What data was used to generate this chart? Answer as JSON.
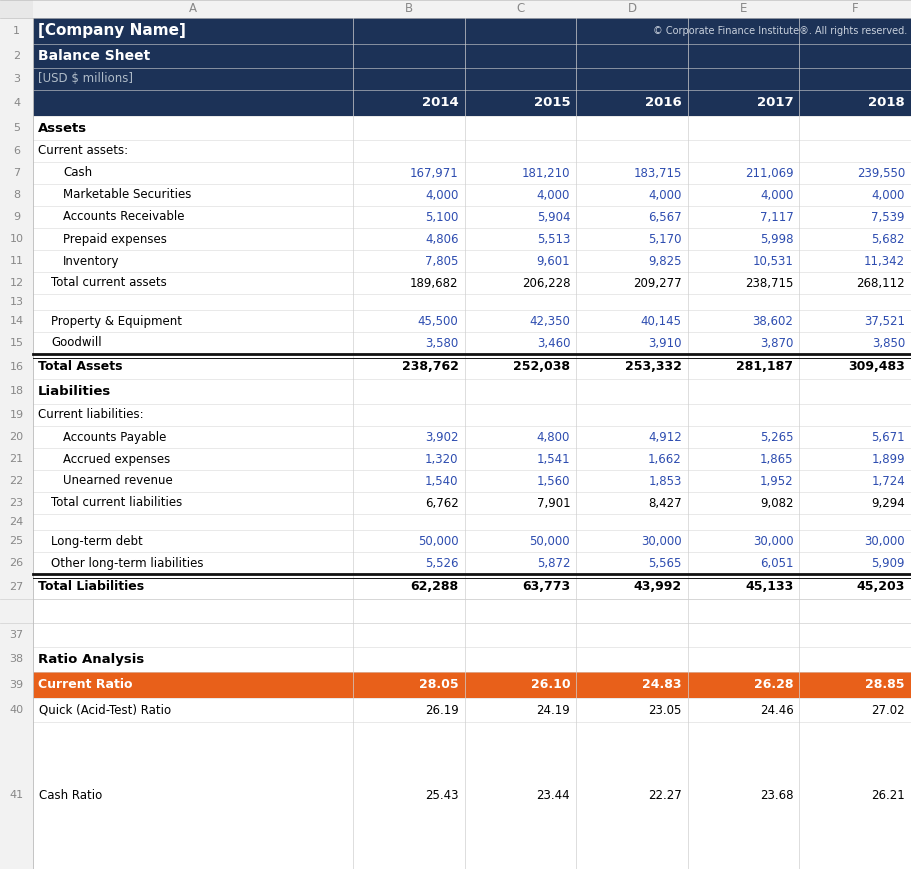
{
  "copyright_text": "© Corporate Finance Institute®. All rights reserved.",
  "header_dark": "#1c3257",
  "orange": "#e8601a",
  "blue_text": "#2e4db0",
  "rows": [
    {
      "row": 1,
      "label": "[Company Name]",
      "values": [],
      "style": "header_title"
    },
    {
      "row": 2,
      "label": "Balance Sheet",
      "values": [],
      "style": "header_sub"
    },
    {
      "row": 3,
      "label": "[USD $ millions]",
      "values": [],
      "style": "header_small"
    },
    {
      "row": 4,
      "label": "",
      "values": [
        "2014",
        "2015",
        "2016",
        "2017",
        "2018"
      ],
      "style": "year_header"
    },
    {
      "row": 5,
      "label": "Assets",
      "values": [],
      "style": "section"
    },
    {
      "row": 6,
      "label": "Current assets:",
      "values": [],
      "style": "subsection"
    },
    {
      "row": 7,
      "label": "Cash",
      "values": [
        "167,971",
        "181,210",
        "183,715",
        "211,069",
        "239,550"
      ],
      "style": "data_blue",
      "indent": 2
    },
    {
      "row": 8,
      "label": "Marketable Securities",
      "values": [
        "4,000",
        "4,000",
        "4,000",
        "4,000",
        "4,000"
      ],
      "style": "data_blue",
      "indent": 2
    },
    {
      "row": 9,
      "label": "Accounts Receivable",
      "values": [
        "5,100",
        "5,904",
        "6,567",
        "7,117",
        "7,539"
      ],
      "style": "data_blue",
      "indent": 2
    },
    {
      "row": 10,
      "label": "Prepaid expenses",
      "values": [
        "4,806",
        "5,513",
        "5,170",
        "5,998",
        "5,682"
      ],
      "style": "data_blue",
      "indent": 2
    },
    {
      "row": 11,
      "label": "Inventory",
      "values": [
        "7,805",
        "9,601",
        "9,825",
        "10,531",
        "11,342"
      ],
      "style": "data_blue",
      "indent": 2
    },
    {
      "row": 12,
      "label": "Total current assets",
      "values": [
        "189,682",
        "206,228",
        "209,277",
        "238,715",
        "268,112"
      ],
      "style": "data_normal",
      "indent": 1
    },
    {
      "row": 13,
      "label": "",
      "values": [],
      "style": "empty"
    },
    {
      "row": 14,
      "label": "Property & Equipment",
      "values": [
        "45,500",
        "42,350",
        "40,145",
        "38,602",
        "37,521"
      ],
      "style": "data_blue",
      "indent": 1
    },
    {
      "row": 15,
      "label": "Goodwill",
      "values": [
        "3,580",
        "3,460",
        "3,910",
        "3,870",
        "3,850"
      ],
      "style": "data_blue",
      "indent": 1
    },
    {
      "row": 16,
      "label": "Total Assets",
      "values": [
        "238,762",
        "252,038",
        "253,332",
        "281,187",
        "309,483"
      ],
      "style": "total"
    },
    {
      "row": 18,
      "label": "Liabilities",
      "values": [],
      "style": "section"
    },
    {
      "row": 19,
      "label": "Current liabilities:",
      "values": [],
      "style": "subsection"
    },
    {
      "row": 20,
      "label": "Accounts Payable",
      "values": [
        "3,902",
        "4,800",
        "4,912",
        "5,265",
        "5,671"
      ],
      "style": "data_blue",
      "indent": 2
    },
    {
      "row": 21,
      "label": "Accrued expenses",
      "values": [
        "1,320",
        "1,541",
        "1,662",
        "1,865",
        "1,899"
      ],
      "style": "data_blue",
      "indent": 2
    },
    {
      "row": 22,
      "label": "Unearned revenue",
      "values": [
        "1,540",
        "1,560",
        "1,853",
        "1,952",
        "1,724"
      ],
      "style": "data_blue",
      "indent": 2
    },
    {
      "row": 23,
      "label": "Total current liabilities",
      "values": [
        "6,762",
        "7,901",
        "8,427",
        "9,082",
        "9,294"
      ],
      "style": "data_normal",
      "indent": 1
    },
    {
      "row": 24,
      "label": "",
      "values": [],
      "style": "empty"
    },
    {
      "row": 25,
      "label": "Long-term debt",
      "values": [
        "50,000",
        "50,000",
        "30,000",
        "30,000",
        "30,000"
      ],
      "style": "data_blue",
      "indent": 1
    },
    {
      "row": 26,
      "label": "Other long-term liabilities",
      "values": [
        "5,526",
        "5,872",
        "5,565",
        "6,051",
        "5,909"
      ],
      "style": "data_blue",
      "indent": 1
    },
    {
      "row": 27,
      "label": "Total Liabilities",
      "values": [
        "62,288",
        "63,773",
        "43,992",
        "45,133",
        "45,203"
      ],
      "style": "total"
    },
    {
      "row": 37,
      "label": "",
      "values": [],
      "style": "empty"
    },
    {
      "row": 38,
      "label": "Ratio Analysis",
      "values": [],
      "style": "section"
    },
    {
      "row": 39,
      "label": "Current Ratio",
      "values": [
        "28.05",
        "26.10",
        "24.83",
        "26.28",
        "28.85"
      ],
      "style": "highlight"
    },
    {
      "row": 40,
      "label": "Quick (Acid-Test) Ratio",
      "values": [
        "26.19",
        "24.19",
        "23.05",
        "24.46",
        "27.02"
      ],
      "style": "data_normal"
    },
    {
      "row": 41,
      "label": "Cash Ratio",
      "values": [
        "25.43",
        "23.44",
        "22.27",
        "23.68",
        "26.21"
      ],
      "style": "data_normal"
    }
  ]
}
